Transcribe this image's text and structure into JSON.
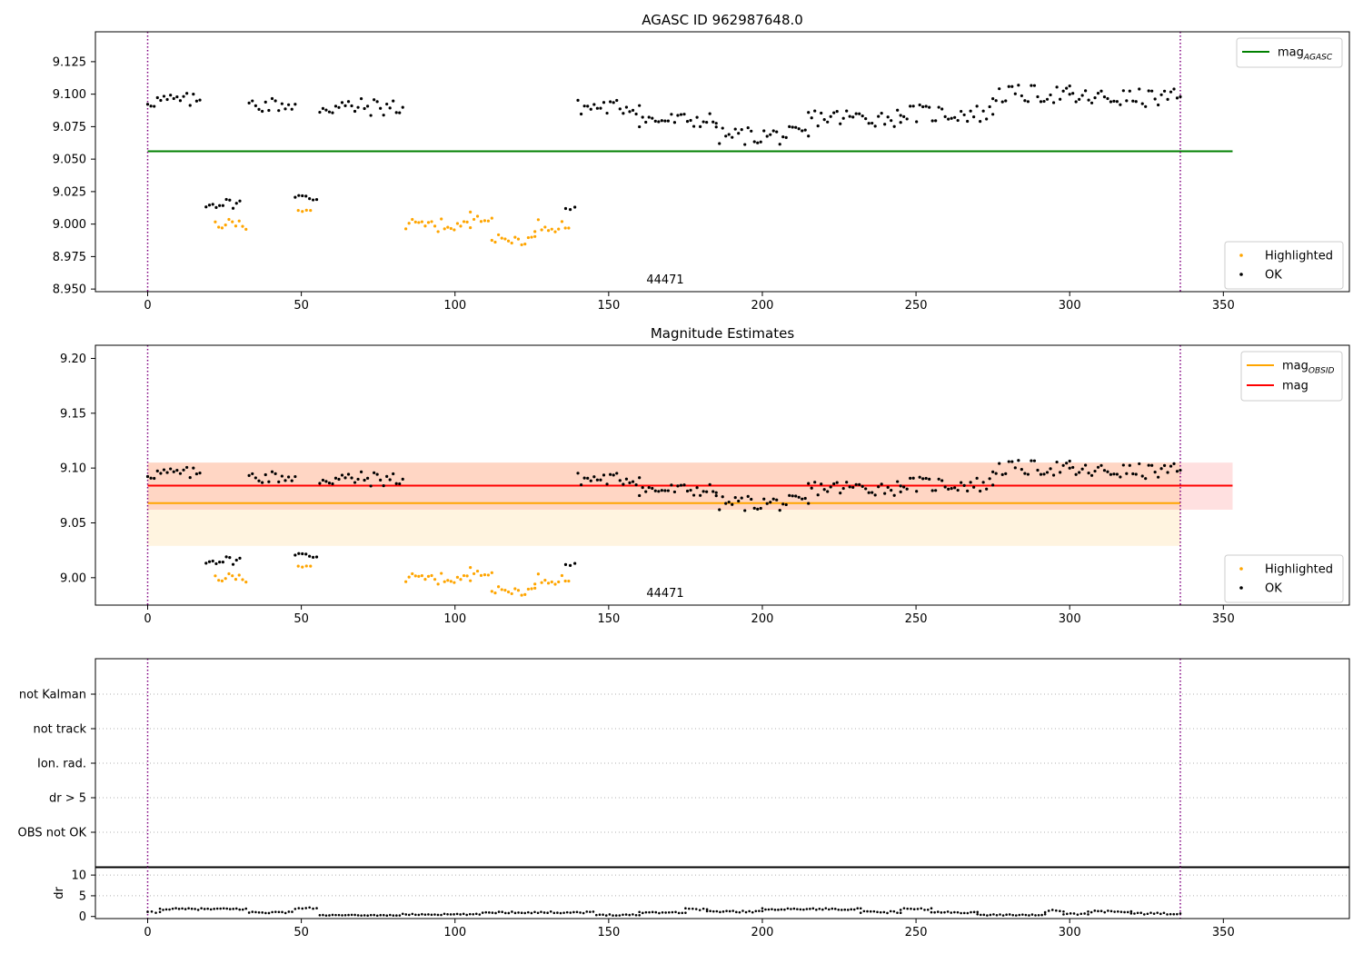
{
  "chart_data": [
    {
      "type": "scatter",
      "title": "AGASC ID 962987648.0",
      "annotation": "44471",
      "xlim": [
        -17,
        391
      ],
      "ylim": [
        8.948,
        9.148
      ],
      "yticks": [
        "8.950",
        "8.975",
        "9.000",
        "9.025",
        "9.050",
        "9.075",
        "9.100",
        "9.125"
      ],
      "xticks": [
        "0",
        "50",
        "100",
        "150",
        "200",
        "250",
        "300",
        "350"
      ],
      "vlines": [
        0,
        336
      ],
      "hlines": [
        {
          "name": "mag_AGASC",
          "label_main": "mag",
          "label_sub": "AGASC",
          "value": 9.056,
          "x_end": 353,
          "color": "#008000"
        }
      ],
      "legend_lines": [
        {
          "label_main": "mag",
          "label_sub": "AGASC",
          "color": "#008000"
        }
      ],
      "legend_points": [
        {
          "label": "Highlighted",
          "color": "#ffa500"
        },
        {
          "label": "OK",
          "color": "#000000"
        }
      ],
      "ok_segments": [
        {
          "x0": 0,
          "x1": 17,
          "base": 9.095,
          "amp": 0.006
        },
        {
          "x0": 19,
          "x1": 30,
          "base": 9.016,
          "amp": 0.004
        },
        {
          "x0": 33,
          "x1": 48,
          "base": 9.092,
          "amp": 0.006
        },
        {
          "x0": 48,
          "x1": 55,
          "base": 9.02,
          "amp": 0.004
        },
        {
          "x0": 56,
          "x1": 83,
          "base": 9.09,
          "amp": 0.007
        },
        {
          "x0": 136,
          "x1": 139,
          "base": 9.012,
          "amp": 0.003
        },
        {
          "x0": 140,
          "x1": 160,
          "base": 9.09,
          "amp": 0.006
        },
        {
          "x0": 160,
          "x1": 185,
          "base": 9.08,
          "amp": 0.006
        },
        {
          "x0": 185,
          "x1": 215,
          "base": 9.068,
          "amp": 0.007
        },
        {
          "x0": 215,
          "x1": 245,
          "base": 9.082,
          "amp": 0.007
        },
        {
          "x0": 245,
          "x1": 275,
          "base": 9.085,
          "amp": 0.007
        },
        {
          "x0": 275,
          "x1": 300,
          "base": 9.1,
          "amp": 0.007
        },
        {
          "x0": 300,
          "x1": 336,
          "base": 9.097,
          "amp": 0.007
        }
      ],
      "highlighted_segments": [
        {
          "x0": 22,
          "x1": 32,
          "base": 9.0,
          "amp": 0.004
        },
        {
          "x0": 49,
          "x1": 53,
          "base": 9.011,
          "amp": 0.002
        },
        {
          "x0": 84,
          "x1": 105,
          "base": 8.999,
          "amp": 0.005
        },
        {
          "x0": 105,
          "x1": 112,
          "base": 9.006,
          "amp": 0.004
        },
        {
          "x0": 112,
          "x1": 126,
          "base": 8.988,
          "amp": 0.004
        },
        {
          "x0": 126,
          "x1": 137,
          "base": 8.999,
          "amp": 0.005
        }
      ]
    },
    {
      "type": "scatter",
      "title": "Magnitude Estimates",
      "annotation": "44471",
      "xlim": [
        -17,
        391
      ],
      "ylim": [
        8.975,
        9.212
      ],
      "yticks": [
        "9.00",
        "9.05",
        "9.10",
        "9.15",
        "9.20"
      ],
      "xticks": [
        "0",
        "50",
        "100",
        "150",
        "200",
        "250",
        "300",
        "350"
      ],
      "vlines": [
        0,
        336
      ],
      "bands": [
        {
          "name": "mag_OBSID band",
          "y0": 9.029,
          "y1": 9.105,
          "x0": 0,
          "x1": 336,
          "color": "#ffa500",
          "opacity": 0.12
        },
        {
          "name": "mag band",
          "y0": 9.062,
          "y1": 9.105,
          "x0": 0,
          "x1": 353,
          "color": "#ff0000",
          "opacity": 0.12
        }
      ],
      "hlines": [
        {
          "name": "mag_OBSID",
          "value": 9.068,
          "x_end": 336,
          "color": "#ffa500"
        },
        {
          "name": "mag",
          "value": 9.084,
          "x_end": 353,
          "color": "#ff0000"
        }
      ],
      "legend_lines": [
        {
          "label_main": "mag",
          "label_sub": "OBSID",
          "color": "#ffa500"
        },
        {
          "label_main": "mag",
          "label_sub": "",
          "color": "#ff0000"
        }
      ],
      "legend_points": [
        {
          "label": "Highlighted",
          "color": "#ffa500"
        },
        {
          "label": "OK",
          "color": "#000000"
        }
      ],
      "ok_segments": "same as panel 1",
      "highlighted_segments": "same as panel 1"
    },
    {
      "type": "scatter",
      "title": "",
      "xlim": [
        -17,
        391
      ],
      "flag_labels": [
        "not Kalman",
        "not track",
        "Ion. rad.",
        "dr > 5",
        "OBS not OK"
      ],
      "vlines": [
        0,
        336
      ],
      "dr_ylim": [
        -0.5,
        12
      ],
      "dr_yticks": [
        "0",
        "5",
        "10"
      ],
      "dr_ylabel": "dr",
      "xticks": [
        "0",
        "50",
        "100",
        "150",
        "200",
        "250",
        "300",
        "350"
      ],
      "dr_segments": [
        {
          "x0": 0,
          "x1": 4,
          "base": 1.0,
          "amp": 0.2
        },
        {
          "x0": 4,
          "x1": 32,
          "base": 1.8,
          "amp": 0.2
        },
        {
          "x0": 33,
          "x1": 47,
          "base": 1.0,
          "amp": 0.2
        },
        {
          "x0": 48,
          "x1": 55,
          "base": 2.0,
          "amp": 0.2
        },
        {
          "x0": 56,
          "x1": 82,
          "base": 0.3,
          "amp": 0.1
        },
        {
          "x0": 83,
          "x1": 108,
          "base": 0.5,
          "amp": 0.15
        },
        {
          "x0": 109,
          "x1": 127,
          "base": 1.0,
          "amp": 0.2
        },
        {
          "x0": 128,
          "x1": 145,
          "base": 1.0,
          "amp": 0.2
        },
        {
          "x0": 146,
          "x1": 160,
          "base": 0.4,
          "amp": 0.15
        },
        {
          "x0": 160,
          "x1": 175,
          "base": 1.0,
          "amp": 0.2
        },
        {
          "x0": 175,
          "x1": 182,
          "base": 1.8,
          "amp": 0.25
        },
        {
          "x0": 182,
          "x1": 200,
          "base": 1.2,
          "amp": 0.2
        },
        {
          "x0": 200,
          "x1": 232,
          "base": 1.8,
          "amp": 0.2
        },
        {
          "x0": 232,
          "x1": 245,
          "base": 1.0,
          "amp": 0.3
        },
        {
          "x0": 245,
          "x1": 255,
          "base": 1.8,
          "amp": 0.2
        },
        {
          "x0": 255,
          "x1": 270,
          "base": 1.0,
          "amp": 0.2
        },
        {
          "x0": 270,
          "x1": 292,
          "base": 0.4,
          "amp": 0.15
        },
        {
          "x0": 292,
          "x1": 298,
          "base": 1.3,
          "amp": 0.3
        },
        {
          "x0": 298,
          "x1": 306,
          "base": 0.6,
          "amp": 0.2
        },
        {
          "x0": 306,
          "x1": 320,
          "base": 1.2,
          "amp": 0.2
        },
        {
          "x0": 320,
          "x1": 336,
          "base": 0.7,
          "amp": 0.2
        }
      ]
    }
  ],
  "colors": {
    "ok": "#000000",
    "highlighted": "#ffa500",
    "vline": "#800080",
    "grid": "#b0b0b0"
  }
}
